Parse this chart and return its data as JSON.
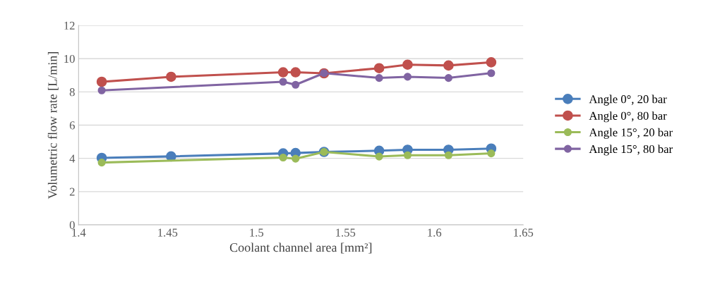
{
  "chart_data": {
    "type": "line",
    "xlabel": "Coolant channel area [mm²]",
    "ylabel": "Volumetric flow rate [L/min]",
    "xlim": [
      1.4,
      1.65
    ],
    "xticks": [
      1.4,
      1.45,
      1.5,
      1.55,
      1.6,
      1.65
    ],
    "ylim": [
      0,
      12
    ],
    "yticks": [
      0,
      2,
      4,
      6,
      8,
      10,
      12
    ],
    "grid": "y",
    "legend": "right",
    "marker": "circle",
    "line_style": "solid",
    "series": [
      {
        "name": "Angle 0°, 20 bar",
        "color": "#4a7ebb",
        "x": [
          1.413,
          1.452,
          1.515,
          1.522,
          1.538,
          1.569,
          1.585,
          1.608,
          1.632
        ],
        "values": [
          4.03,
          4.12,
          4.3,
          4.32,
          4.39,
          4.46,
          4.52,
          4.52,
          4.59
        ]
      },
      {
        "name": "Angle 0°, 80 bar",
        "color": "#c0504d",
        "x": [
          1.413,
          1.452,
          1.515,
          1.522,
          1.538,
          1.569,
          1.585,
          1.608,
          1.632
        ],
        "values": [
          8.61,
          8.91,
          9.18,
          9.18,
          9.12,
          9.43,
          9.64,
          9.59,
          9.78
        ]
      },
      {
        "name": "Angle 15°, 20 bar",
        "color": "#9bbb59",
        "x": [
          1.413,
          1.515,
          1.522,
          1.538,
          1.569,
          1.585,
          1.608,
          1.632
        ],
        "values": [
          3.75,
          4.05,
          3.98,
          4.39,
          4.11,
          4.19,
          4.19,
          4.3
        ]
      },
      {
        "name": "Angle 15°, 80 bar",
        "color": "#8064a2",
        "x": [
          1.413,
          1.515,
          1.522,
          1.538,
          1.569,
          1.585,
          1.608,
          1.632
        ],
        "values": [
          8.09,
          8.61,
          8.43,
          9.13,
          8.84,
          8.91,
          8.84,
          9.13
        ]
      }
    ]
  }
}
